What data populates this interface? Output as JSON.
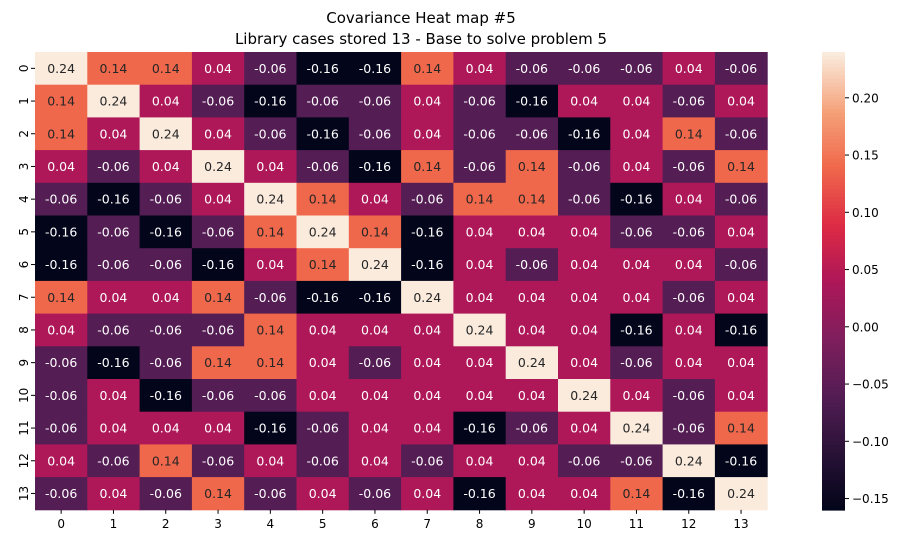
{
  "chart_data": {
    "type": "heatmap",
    "title": "Covariance Heat map #5",
    "subtitle": "Library cases stored 13 - Base to solve problem 5",
    "x_ticks": [
      "0",
      "1",
      "2",
      "3",
      "4",
      "5",
      "6",
      "7",
      "8",
      "9",
      "10",
      "11",
      "12",
      "13"
    ],
    "y_ticks": [
      "0",
      "1",
      "2",
      "3",
      "4",
      "5",
      "6",
      "7",
      "8",
      "9",
      "10",
      "11",
      "12",
      "13"
    ],
    "values": [
      [
        0.24,
        0.14,
        0.14,
        0.04,
        -0.06,
        -0.16,
        -0.16,
        0.14,
        0.04,
        -0.06,
        -0.06,
        -0.06,
        0.04,
        -0.06
      ],
      [
        0.14,
        0.24,
        0.04,
        -0.06,
        -0.16,
        -0.06,
        -0.06,
        0.04,
        -0.06,
        -0.16,
        0.04,
        0.04,
        -0.06,
        0.04
      ],
      [
        0.14,
        0.04,
        0.24,
        0.04,
        -0.06,
        -0.16,
        -0.06,
        0.04,
        -0.06,
        -0.06,
        -0.16,
        0.04,
        0.14,
        -0.06
      ],
      [
        0.04,
        -0.06,
        0.04,
        0.24,
        0.04,
        -0.06,
        -0.16,
        0.14,
        -0.06,
        0.14,
        -0.06,
        0.04,
        -0.06,
        0.14
      ],
      [
        -0.06,
        -0.16,
        -0.06,
        0.04,
        0.24,
        0.14,
        0.04,
        -0.06,
        0.14,
        0.14,
        -0.06,
        -0.16,
        0.04,
        -0.06
      ],
      [
        -0.16,
        -0.06,
        -0.16,
        -0.06,
        0.14,
        0.24,
        0.14,
        -0.16,
        0.04,
        0.04,
        0.04,
        -0.06,
        -0.06,
        0.04
      ],
      [
        -0.16,
        -0.06,
        -0.06,
        -0.16,
        0.04,
        0.14,
        0.24,
        -0.16,
        0.04,
        -0.06,
        0.04,
        0.04,
        0.04,
        -0.06
      ],
      [
        0.14,
        0.04,
        0.04,
        0.14,
        -0.06,
        -0.16,
        -0.16,
        0.24,
        0.04,
        0.04,
        0.04,
        0.04,
        -0.06,
        0.04
      ],
      [
        0.04,
        -0.06,
        -0.06,
        -0.06,
        0.14,
        0.04,
        0.04,
        0.04,
        0.24,
        0.04,
        0.04,
        -0.16,
        0.04,
        -0.16
      ],
      [
        -0.06,
        -0.16,
        -0.06,
        0.14,
        0.14,
        0.04,
        -0.06,
        0.04,
        0.04,
        0.24,
        0.04,
        -0.06,
        0.04,
        0.04
      ],
      [
        -0.06,
        0.04,
        -0.16,
        -0.06,
        -0.06,
        0.04,
        0.04,
        0.04,
        0.04,
        0.04,
        0.24,
        0.04,
        -0.06,
        0.04
      ],
      [
        -0.06,
        0.04,
        0.04,
        0.04,
        -0.16,
        -0.06,
        0.04,
        0.04,
        -0.16,
        -0.06,
        0.04,
        0.24,
        -0.06,
        0.14
      ],
      [
        0.04,
        -0.06,
        0.14,
        -0.06,
        0.04,
        -0.06,
        0.04,
        -0.06,
        0.04,
        0.04,
        -0.06,
        -0.06,
        0.24,
        -0.16
      ],
      [
        -0.06,
        0.04,
        -0.06,
        0.14,
        -0.06,
        0.04,
        -0.06,
        0.04,
        -0.16,
        0.04,
        0.04,
        0.14,
        -0.16,
        0.24
      ]
    ],
    "value_range": [
      -0.16,
      0.24
    ],
    "colormap": "rocket",
    "colorbar_ticks": [
      "0.20",
      "0.15",
      "0.10",
      "0.05",
      "0.00",
      "−0.05",
      "−0.10",
      "−0.15"
    ],
    "colorbar_tick_values": [
      0.2,
      0.15,
      0.1,
      0.05,
      0.0,
      -0.05,
      -0.1,
      -0.15
    ],
    "grid": false
  }
}
